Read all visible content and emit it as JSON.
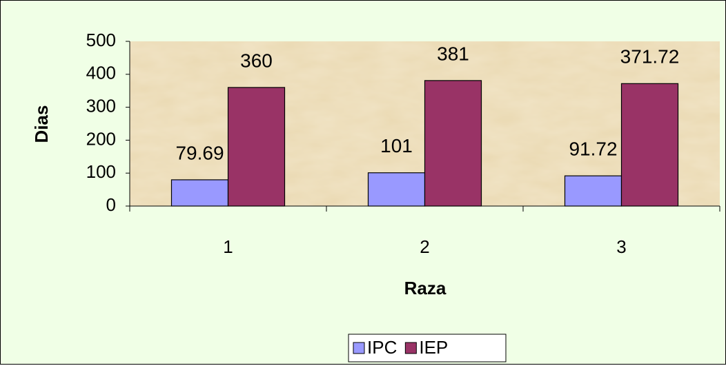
{
  "chart_data": {
    "type": "bar",
    "categories": [
      "1",
      "2",
      "3"
    ],
    "series": [
      {
        "name": "IPC",
        "color": "#9999ff",
        "values": [
          79.69,
          101,
          91.72
        ]
      },
      {
        "name": "IEP",
        "color": "#993366",
        "values": [
          360,
          381,
          371.72
        ]
      }
    ],
    "xlabel": "Raza",
    "ylabel": "Dias",
    "ylim": [
      0,
      500
    ],
    "yticks": [
      0,
      100,
      200,
      300,
      400,
      500
    ],
    "legend": "bottom"
  }
}
